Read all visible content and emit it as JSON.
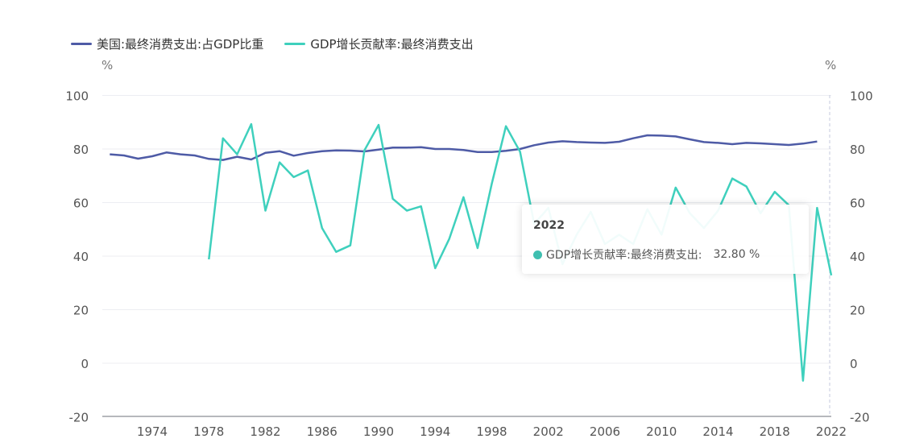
{
  "chart_data": {
    "type": "line",
    "x": [
      1971,
      1972,
      1973,
      1974,
      1975,
      1976,
      1977,
      1978,
      1979,
      1980,
      1981,
      1982,
      1983,
      1984,
      1985,
      1986,
      1987,
      1988,
      1989,
      1990,
      1991,
      1992,
      1993,
      1994,
      1995,
      1996,
      1997,
      1998,
      1999,
      2000,
      2001,
      2002,
      2003,
      2004,
      2005,
      2006,
      2007,
      2008,
      2009,
      2010,
      2011,
      2012,
      2013,
      2014,
      2015,
      2016,
      2017,
      2018,
      2019,
      2020,
      2021,
      2022
    ],
    "x_ticks": [
      "1974",
      "1978",
      "1982",
      "1986",
      "1990",
      "1994",
      "1998",
      "2002",
      "2006",
      "2010",
      "2014",
      "2018",
      "2022"
    ],
    "y_ticks": [
      "100",
      "80",
      "60",
      "40",
      "20",
      "0",
      "-20"
    ],
    "ylim": [
      -20,
      100
    ],
    "left_unit": "%",
    "right_unit": "%",
    "grid": true,
    "legend_position": "top-left",
    "series": [
      {
        "name": "美国:最终消费支出:占GDP比重",
        "color": "#4e5ba6",
        "axis": "left",
        "values": [
          78.0,
          77.6,
          76.4,
          77.3,
          78.7,
          78.0,
          77.6,
          76.3,
          75.9,
          77.1,
          76.1,
          78.6,
          79.2,
          77.5,
          78.5,
          79.2,
          79.5,
          79.4,
          79.1,
          79.8,
          80.5,
          80.5,
          80.7,
          80.0,
          80.0,
          79.6,
          78.9,
          78.9,
          79.3,
          80.0,
          81.4,
          82.4,
          82.9,
          82.6,
          82.4,
          82.3,
          82.7,
          84.0,
          85.1,
          85.0,
          84.7,
          83.6,
          82.6,
          82.3,
          81.8,
          82.3,
          82.1,
          81.8,
          81.5,
          82.0,
          82.8,
          null
        ]
      },
      {
        "name": "GDP增长贡献率:最终消费支出",
        "color": "#3fd0bd",
        "axis": "right",
        "values": [
          null,
          null,
          null,
          null,
          null,
          null,
          null,
          38.8,
          84.0,
          78.0,
          89.3,
          57.0,
          75.0,
          69.5,
          72.0,
          50.5,
          41.6,
          44.0,
          79.5,
          89.0,
          61.4,
          57.0,
          58.6,
          35.5,
          46.5,
          62.0,
          43.0,
          67.0,
          88.5,
          79.0,
          52.0,
          58.0,
          37.0,
          48.0,
          56.5,
          44.5,
          48.0,
          44.5,
          57.5,
          48.0,
          65.6,
          56.0,
          50.5,
          57.0,
          69.0,
          66.0,
          56.0,
          64.0,
          59.0,
          -6.5,
          58.0,
          32.8
        ]
      }
    ]
  },
  "tooltip": {
    "title": "2022",
    "series": "GDP增长贡献率:最终消费支出:",
    "value": "32.80 %",
    "color": "#3fbfb0"
  }
}
